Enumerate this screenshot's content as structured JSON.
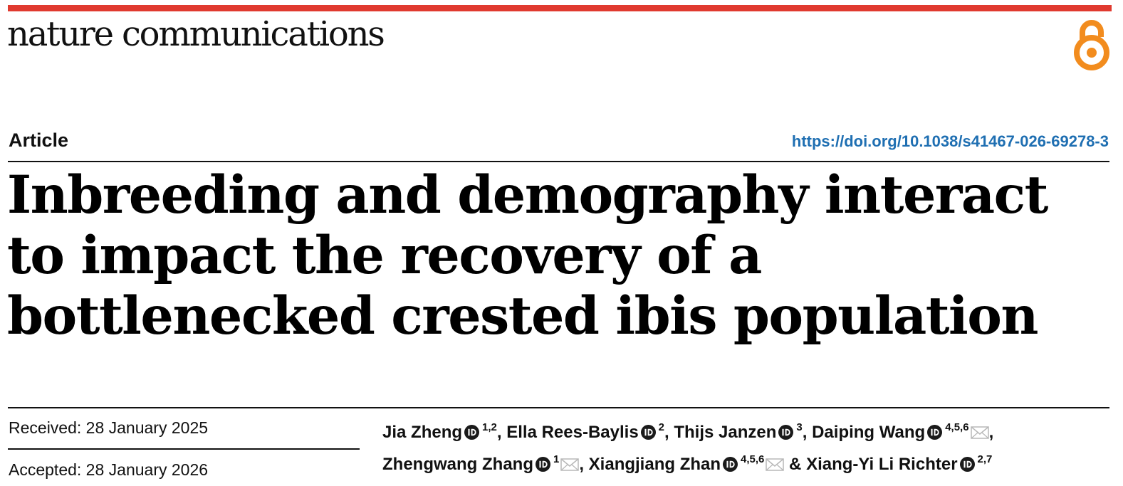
{
  "colors": {
    "brand_red": "#e03a2f",
    "open_access_orange": "#f28c1e",
    "link_blue": "#1f6fb2",
    "orcid_dark": "#1a1a1a",
    "mail_grey": "#b8b8b8"
  },
  "header": {
    "journal_name": "nature communications",
    "open_access_icon": "open-access-lock-icon"
  },
  "article": {
    "type": "Article",
    "doi": "https://doi.org/10.1038/s41467-026-69278-3",
    "title": "Inbreeding and demography interact to impact the recovery of a bottlenecked crested ibis population"
  },
  "dates": {
    "received": "Received: 28 January 2025",
    "accepted": "Accepted: 28 January 2026"
  },
  "authors": [
    {
      "name": "Jia Zheng",
      "affiliations": "1,2",
      "orcid": true,
      "corresponding": false,
      "separator": ", "
    },
    {
      "name": "Ella Rees-Baylis",
      "affiliations": "2",
      "orcid": true,
      "corresponding": false,
      "separator": ", "
    },
    {
      "name": "Thijs Janzen",
      "affiliations": "3",
      "orcid": true,
      "corresponding": false,
      "separator": ", "
    },
    {
      "name": "Daiping Wang",
      "affiliations": "4,5,6",
      "orcid": true,
      "corresponding": true,
      "separator": ", "
    },
    {
      "name": "Zhengwang Zhang",
      "affiliations": "1",
      "orcid": true,
      "corresponding": true,
      "separator": ", "
    },
    {
      "name": "Xiangjiang Zhan",
      "affiliations": "4,5,6",
      "orcid": true,
      "corresponding": true,
      "separator": " & "
    },
    {
      "name": "Xiang-Yi Li Richter",
      "affiliations": "2,7",
      "orcid": true,
      "corresponding": false,
      "separator": ""
    }
  ]
}
